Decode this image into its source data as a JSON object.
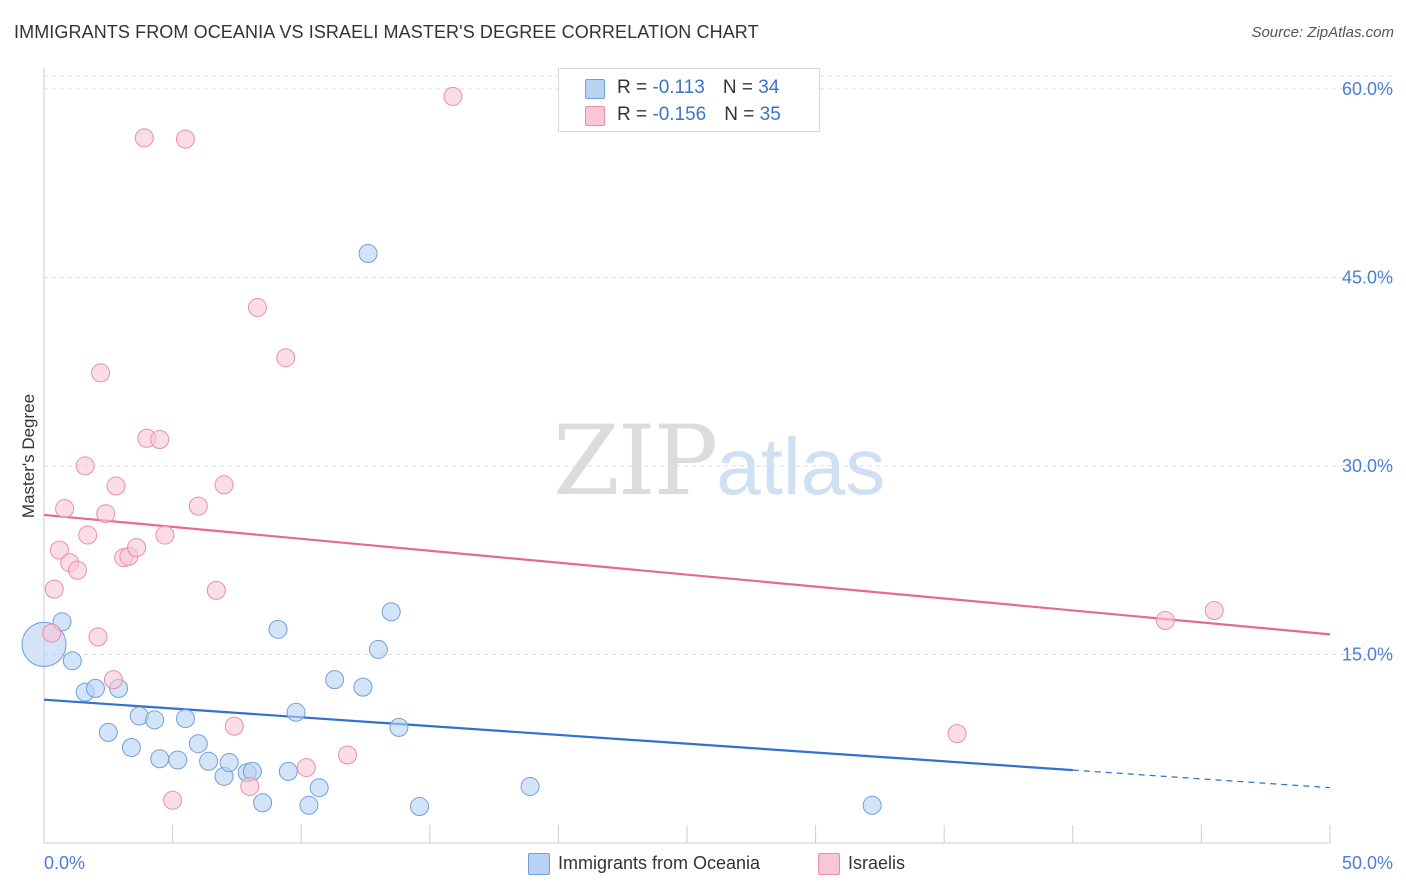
{
  "title": "IMMIGRANTS FROM OCEANIA VS ISRAELI MASTER'S DEGREE CORRELATION CHART",
  "source": "Source: ZipAtlas.com",
  "watermark": {
    "zip": "ZIP",
    "atlas": "atlas"
  },
  "legend_top": [
    {
      "r_label": "R = ",
      "r_value": "-0.113",
      "n_label": "N = ",
      "n_value": "34"
    },
    {
      "r_label": "R = ",
      "r_value": "-0.156",
      "n_label": "N = ",
      "n_value": "35"
    }
  ],
  "colors": {
    "blue_fill": "#b7d2f3",
    "blue_stroke": "#6f9fdc",
    "blue_line": "#2f72cf",
    "pink_fill": "#f9c6d5",
    "pink_stroke": "#ea8fab",
    "pink_line": "#e46a95",
    "tick_text": "#4a7fd4",
    "grid": "#dddddd"
  },
  "chart_data": {
    "type": "scatter",
    "title": "IMMIGRANTS FROM OCEANIA VS ISRAELI MASTER'S DEGREE CORRELATION CHART",
    "xlabel": "",
    "ylabel": "Master's Degree",
    "xlim": [
      0,
      50
    ],
    "ylim": [
      0,
      61.5
    ],
    "x_tick_labels": [
      "0.0%",
      "50.0%"
    ],
    "y_ticks": [
      15,
      30,
      45,
      60
    ],
    "y_tick_labels": [
      "15.0%",
      "30.0%",
      "45.0%",
      "60.0%"
    ],
    "legend_position": "bottom",
    "series": [
      {
        "name": "Immigrants from Oceania",
        "color": "blue",
        "trend": {
          "x0": 0,
          "y0": 11.4,
          "x1": 40,
          "y1": 5.8,
          "dash_to_x": 50,
          "dash_to_y": 4.4
        },
        "points": [
          [
            0.0,
            15.8,
            22
          ],
          [
            0.7,
            17.6,
            9
          ],
          [
            1.1,
            14.5,
            9
          ],
          [
            1.6,
            12.0,
            9
          ],
          [
            2.0,
            12.3,
            9
          ],
          [
            2.5,
            8.8,
            9
          ],
          [
            2.9,
            12.3,
            9
          ],
          [
            3.4,
            7.6,
            9
          ],
          [
            3.7,
            10.1,
            9
          ],
          [
            4.3,
            9.8,
            9
          ],
          [
            4.5,
            6.7,
            9
          ],
          [
            5.2,
            6.6,
            9
          ],
          [
            5.5,
            9.9,
            9
          ],
          [
            6.0,
            7.9,
            9
          ],
          [
            6.4,
            6.5,
            9
          ],
          [
            7.0,
            5.3,
            9
          ],
          [
            7.2,
            6.4,
            9
          ],
          [
            7.9,
            5.6,
            9
          ],
          [
            8.1,
            5.7,
            9
          ],
          [
            8.5,
            3.2,
            9
          ],
          [
            9.1,
            17.0,
            9
          ],
          [
            9.5,
            5.7,
            9
          ],
          [
            9.8,
            10.4,
            9
          ],
          [
            10.3,
            3.0,
            9
          ],
          [
            10.7,
            4.4,
            9
          ],
          [
            11.3,
            13.0,
            9
          ],
          [
            12.4,
            12.4,
            9
          ],
          [
            12.6,
            46.9,
            9
          ],
          [
            13.0,
            15.4,
            9
          ],
          [
            13.5,
            18.4,
            9
          ],
          [
            13.8,
            9.2,
            9
          ],
          [
            14.6,
            2.9,
            9
          ],
          [
            18.9,
            4.5,
            9
          ],
          [
            32.2,
            3.0,
            9
          ]
        ]
      },
      {
        "name": "Israelis",
        "color": "pink",
        "trend": {
          "x0": 0,
          "y0": 26.1,
          "x1": 50,
          "y1": 16.6
        },
        "points": [
          [
            0.3,
            16.7,
            9
          ],
          [
            0.4,
            20.2,
            9
          ],
          [
            0.6,
            23.3,
            9
          ],
          [
            0.8,
            26.6,
            9
          ],
          [
            1.0,
            22.3,
            9
          ],
          [
            1.3,
            21.7,
            9
          ],
          [
            1.6,
            30.0,
            9
          ],
          [
            1.7,
            24.5,
            9
          ],
          [
            2.1,
            16.4,
            9
          ],
          [
            2.2,
            37.4,
            9
          ],
          [
            2.4,
            26.2,
            9
          ],
          [
            2.7,
            13.0,
            9
          ],
          [
            2.8,
            28.4,
            9
          ],
          [
            3.1,
            22.7,
            9
          ],
          [
            3.3,
            22.8,
            9
          ],
          [
            3.6,
            23.5,
            9
          ],
          [
            3.9,
            56.1,
            9
          ],
          [
            4.0,
            32.2,
            9
          ],
          [
            4.5,
            32.1,
            9
          ],
          [
            4.7,
            24.5,
            9
          ],
          [
            5.0,
            3.4,
            9
          ],
          [
            5.5,
            56.0,
            9
          ],
          [
            6.0,
            26.8,
            9
          ],
          [
            6.7,
            20.1,
            9
          ],
          [
            7.0,
            28.5,
            9
          ],
          [
            7.4,
            9.3,
            9
          ],
          [
            8.0,
            4.5,
            9
          ],
          [
            8.3,
            42.6,
            9
          ],
          [
            9.4,
            38.6,
            9
          ],
          [
            10.2,
            6.0,
            9
          ],
          [
            11.8,
            7.0,
            9
          ],
          [
            15.9,
            59.4,
            9
          ],
          [
            35.5,
            8.7,
            9
          ],
          [
            43.6,
            17.7,
            9
          ],
          [
            45.5,
            18.5,
            9
          ]
        ]
      }
    ]
  }
}
